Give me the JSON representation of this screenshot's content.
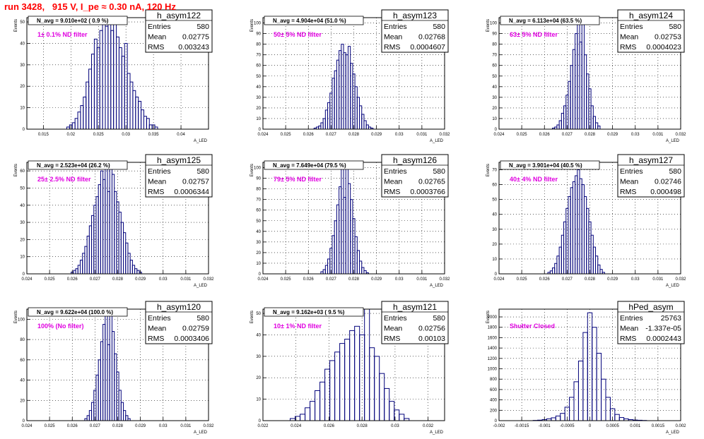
{
  "header": {
    "run_title": "run 3428,   915 V, I_pe ≈ 0.30 nA, 120 Hz"
  },
  "chart_data": [
    {
      "type": "bar",
      "name": "h_asym122",
      "stats": {
        "entries": "580",
        "mean": "0.02775",
        "rms": "0.003243"
      },
      "navg": "N_avg = 9.010e+02 ( 0.9 %)",
      "filter": "1± 0.1% ND filter",
      "xlabel": "A_LED",
      "ylabel": "Events",
      "xlim": [
        0.012,
        0.045
      ],
      "ylim": [
        0,
        52
      ],
      "xticks": [
        "0.015",
        "0.02",
        "0.025",
        "0.03",
        "0.035",
        "0.04"
      ],
      "yticks": [
        "0",
        "10",
        "20",
        "30",
        "40",
        "50"
      ],
      "x": [
        0.0195,
        0.02,
        0.0205,
        0.021,
        0.0215,
        0.022,
        0.0225,
        0.023,
        0.0235,
        0.024,
        0.0245,
        0.025,
        0.0255,
        0.026,
        0.0265,
        0.027,
        0.0275,
        0.028,
        0.0285,
        0.029,
        0.0295,
        0.03,
        0.0305,
        0.031,
        0.0315,
        0.032,
        0.0325,
        0.033,
        0.0335,
        0.034,
        0.0345,
        0.035,
        0.0355
      ],
      "values": [
        1,
        2,
        3,
        5,
        8,
        11,
        15,
        22,
        28,
        35,
        42,
        38,
        46,
        52,
        48,
        50,
        46,
        52,
        43,
        38,
        34,
        40,
        26,
        22,
        18,
        15,
        13,
        9,
        6,
        5,
        2,
        2,
        1
      ]
    },
    {
      "type": "bar",
      "name": "h_asym123",
      "stats": {
        "entries": "580",
        "mean": "0.02768",
        "rms": "0.0004607"
      },
      "navg": "N_avg = 4.904e+04 (51.0 %)",
      "filter": "50± 5% ND filter",
      "xlabel": "A_LED",
      "ylabel": "Events",
      "xlim": [
        0.024,
        0.032
      ],
      "ylim": [
        0,
        105
      ],
      "xticks": [
        "0.024",
        "0.025",
        "0.026",
        "0.027",
        "0.028",
        "0.029",
        "0.03",
        "0.031",
        "0.032"
      ],
      "yticks": [
        "0",
        "10",
        "20",
        "30",
        "40",
        "50",
        "60",
        "70",
        "80",
        "90",
        "100"
      ],
      "x": [
        0.0263,
        0.0264,
        0.0265,
        0.0266,
        0.0267,
        0.0268,
        0.0269,
        0.027,
        0.0271,
        0.0272,
        0.0273,
        0.0274,
        0.0275,
        0.0276,
        0.0277,
        0.0278,
        0.0279,
        0.028,
        0.0281,
        0.0282,
        0.0283,
        0.0284,
        0.0285,
        0.0286,
        0.0287,
        0.0288
      ],
      "values": [
        1,
        2,
        3,
        6,
        10,
        18,
        25,
        34,
        48,
        55,
        65,
        74,
        80,
        72,
        70,
        78,
        62,
        52,
        40,
        30,
        22,
        14,
        8,
        4,
        2,
        1
      ]
    },
    {
      "type": "bar",
      "name": "h_asym124",
      "stats": {
        "entries": "580",
        "mean": "0.02753",
        "rms": "0.0004023"
      },
      "navg": "N_avg = 6.113e+04 (63.5 %)",
      "filter": "63± 5% ND filter",
      "xlabel": "A_LED",
      "ylabel": "Events",
      "xlim": [
        0.024,
        0.032
      ],
      "ylim": [
        0,
        105
      ],
      "xticks": [
        "0.024",
        "0.025",
        "0.026",
        "0.027",
        "0.028",
        "0.029",
        "0.03",
        "0.031",
        "0.032"
      ],
      "yticks": [
        "0",
        "10",
        "20",
        "30",
        "40",
        "50",
        "60",
        "70",
        "80",
        "90",
        "100"
      ],
      "x": [
        0.0264,
        0.0265,
        0.0266,
        0.0267,
        0.0268,
        0.0269,
        0.027,
        0.0271,
        0.0272,
        0.0273,
        0.0274,
        0.0275,
        0.0276,
        0.0277,
        0.0278,
        0.0279,
        0.028,
        0.0281,
        0.0282,
        0.0283,
        0.0284
      ],
      "values": [
        1,
        2,
        4,
        8,
        15,
        22,
        32,
        45,
        60,
        75,
        90,
        105,
        82,
        105,
        70,
        52,
        38,
        22,
        12,
        6,
        3
      ]
    },
    {
      "type": "bar",
      "name": "h_asym125",
      "stats": {
        "entries": "580",
        "mean": "0.02757",
        "rms": "0.0006344"
      },
      "navg": "N_avg = 2.523e+04 (26.2 %)",
      "filter": "25± 2.5% ND filter",
      "xlabel": "A_LED",
      "ylabel": "Events",
      "xlim": [
        0.024,
        0.032
      ],
      "ylim": [
        0,
        65
      ],
      "xticks": [
        "0.024",
        "0.025",
        "0.026",
        "0.027",
        "0.028",
        "0.029",
        "0.03",
        "0.031",
        "0.032"
      ],
      "yticks": [
        "0",
        "10",
        "20",
        "30",
        "40",
        "50",
        "60"
      ],
      "x": [
        0.026,
        0.0261,
        0.0262,
        0.0263,
        0.0264,
        0.0265,
        0.0266,
        0.0267,
        0.0268,
        0.0269,
        0.027,
        0.0271,
        0.0272,
        0.0273,
        0.0274,
        0.0275,
        0.0276,
        0.0277,
        0.0278,
        0.0279,
        0.028,
        0.0281,
        0.0282,
        0.0283,
        0.0284,
        0.0285,
        0.0286,
        0.0287,
        0.0288,
        0.0289,
        0.029
      ],
      "values": [
        1,
        2,
        3,
        5,
        8,
        12,
        16,
        22,
        28,
        34,
        40,
        45,
        52,
        60,
        55,
        62,
        48,
        65,
        58,
        48,
        42,
        36,
        30,
        24,
        18,
        12,
        8,
        5,
        3,
        2,
        1
      ]
    },
    {
      "type": "bar",
      "name": "h_asym126",
      "stats": {
        "entries": "580",
        "mean": "0.02765",
        "rms": "0.0003766"
      },
      "navg": "N_avg = 7.649e+04 (79.5 %)",
      "filter": "79± 5% ND filter",
      "xlabel": "A_LED",
      "ylabel": "Events",
      "xlim": [
        0.024,
        0.032
      ],
      "ylim": [
        0,
        105
      ],
      "xticks": [
        "0.024",
        "0.025",
        "0.026",
        "0.027",
        "0.028",
        "0.029",
        "0.03",
        "0.031",
        "0.032"
      ],
      "yticks": [
        "0",
        "10",
        "20",
        "30",
        "40",
        "50",
        "60",
        "70",
        "80",
        "90",
        "100"
      ],
      "x": [
        0.0266,
        0.0267,
        0.0268,
        0.0269,
        0.027,
        0.0271,
        0.0272,
        0.0273,
        0.0274,
        0.0275,
        0.0276,
        0.0277,
        0.0278,
        0.0279,
        0.028,
        0.0281,
        0.0282,
        0.0283,
        0.0284,
        0.0285,
        0.0286
      ],
      "values": [
        2,
        4,
        8,
        14,
        24,
        36,
        50,
        65,
        82,
        100,
        72,
        105,
        85,
        70,
        52,
        35,
        22,
        12,
        6,
        3,
        1
      ]
    },
    {
      "type": "bar",
      "name": "h_asym127",
      "stats": {
        "entries": "580",
        "mean": "0.02746",
        "rms": "0.000498"
      },
      "navg": "N_avg = 3.901e+04 (40.5 %)",
      "filter": "40± 4% ND filter",
      "xlabel": "A_LED",
      "ylabel": "Events",
      "xlim": [
        0.024,
        0.032
      ],
      "ylim": [
        0,
        75
      ],
      "xticks": [
        "0.024",
        "0.025",
        "0.026",
        "0.027",
        "0.028",
        "0.029",
        "0.03",
        "0.031",
        "0.032"
      ],
      "yticks": [
        "0",
        "10",
        "20",
        "30",
        "40",
        "50",
        "60",
        "70"
      ],
      "x": [
        0.0262,
        0.0263,
        0.0264,
        0.0265,
        0.0266,
        0.0267,
        0.0268,
        0.0269,
        0.027,
        0.0271,
        0.0272,
        0.0273,
        0.0274,
        0.0275,
        0.0276,
        0.0277,
        0.0278,
        0.0279,
        0.028,
        0.0281,
        0.0282,
        0.0283,
        0.0284,
        0.0285,
        0.0286
      ],
      "values": [
        1,
        2,
        4,
        7,
        12,
        18,
        26,
        35,
        44,
        52,
        58,
        62,
        66,
        70,
        64,
        60,
        52,
        44,
        35,
        26,
        18,
        12,
        6,
        3,
        1
      ]
    },
    {
      "type": "bar",
      "name": "h_asym120",
      "stats": {
        "entries": "580",
        "mean": "0.02759",
        "rms": "0.0003406"
      },
      "navg": "N_avg = 9.622e+04 (100.0 %)",
      "filter": "100% (No filter)",
      "xlabel": "A_LED",
      "ylabel": "Events",
      "xlim": [
        0.024,
        0.032
      ],
      "ylim": [
        0,
        110
      ],
      "xticks": [
        "0.024",
        "0.025",
        "0.026",
        "0.027",
        "0.028",
        "0.029",
        "0.03",
        "0.031",
        "0.032"
      ],
      "yticks": [
        "0",
        "20",
        "40",
        "60",
        "80",
        "100"
      ],
      "x": [
        0.0266,
        0.0267,
        0.0268,
        0.0269,
        0.027,
        0.0271,
        0.0272,
        0.0273,
        0.0274,
        0.0275,
        0.0276,
        0.0277,
        0.0278,
        0.0279,
        0.028,
        0.0281,
        0.0282,
        0.0283,
        0.0284,
        0.0285
      ],
      "values": [
        2,
        5,
        10,
        18,
        30,
        45,
        60,
        78,
        95,
        110,
        75,
        108,
        88,
        66,
        48,
        30,
        18,
        10,
        5,
        2
      ]
    },
    {
      "type": "bar",
      "name": "h_asym121",
      "stats": {
        "entries": "580",
        "mean": "0.02756",
        "rms": "0.00103"
      },
      "navg": "N_avg = 9.162e+03 ( 9.5 %)",
      "filter": "10± 1% ND filter",
      "xlabel": "A_LED",
      "ylabel": "Events",
      "xlim": [
        0.022,
        0.033
      ],
      "ylim": [
        0,
        52
      ],
      "xticks": [
        "0.022",
        "0.024",
        "0.026",
        "0.028",
        "0.03",
        "0.032"
      ],
      "yticks": [
        "0",
        "10",
        "20",
        "30",
        "40",
        "50"
      ],
      "x": [
        0.0238,
        0.0241,
        0.0244,
        0.0247,
        0.025,
        0.0253,
        0.0256,
        0.0259,
        0.0262,
        0.0265,
        0.0268,
        0.0271,
        0.0274,
        0.0277,
        0.028,
        0.0283,
        0.0286,
        0.0289,
        0.0292,
        0.0295,
        0.0298,
        0.0301,
        0.0304,
        0.0307
      ],
      "values": [
        1,
        2,
        3,
        6,
        9,
        14,
        18,
        24,
        28,
        32,
        36,
        38,
        42,
        44,
        40,
        52,
        34,
        30,
        22,
        15,
        9,
        5,
        3,
        1
      ]
    },
    {
      "type": "bar",
      "name": "hPed_asym",
      "stats": {
        "entries": "25763",
        "mean": "-1.337e-05",
        "rms": "0.0002443"
      },
      "navg": "",
      "filter": "Shutter Closed",
      "xlabel": "A_LED",
      "ylabel": "Events",
      "xlim": [
        -0.002,
        0.002
      ],
      "ylim": [
        0,
        2150
      ],
      "xticks": [
        "-0.002",
        "-0.0015",
        "-0.001",
        "-0.0005",
        "0",
        "0.0005",
        "0.001",
        "0.0015",
        "0.002"
      ],
      "yticks": [
        "0",
        "200",
        "400",
        "600",
        "800",
        "1000",
        "1200",
        "1400",
        "1600",
        "1800",
        "2000"
      ],
      "x": [
        -0.0012,
        -0.0011,
        -0.001,
        -0.0009,
        -0.0008,
        -0.0007,
        -0.0006,
        -0.0005,
        -0.0004,
        -0.0003,
        -0.0002,
        -0.0001,
        0.0,
        0.0001,
        0.0002,
        0.0003,
        0.0004,
        0.0005,
        0.0006,
        0.0007,
        0.0008,
        0.0009,
        0.001,
        0.0011,
        0.0012
      ],
      "values": [
        5,
        10,
        20,
        35,
        55,
        90,
        140,
        260,
        450,
        750,
        1150,
        1700,
        2080,
        1800,
        1300,
        800,
        450,
        230,
        120,
        60,
        35,
        20,
        12,
        8,
        4
      ]
    }
  ]
}
